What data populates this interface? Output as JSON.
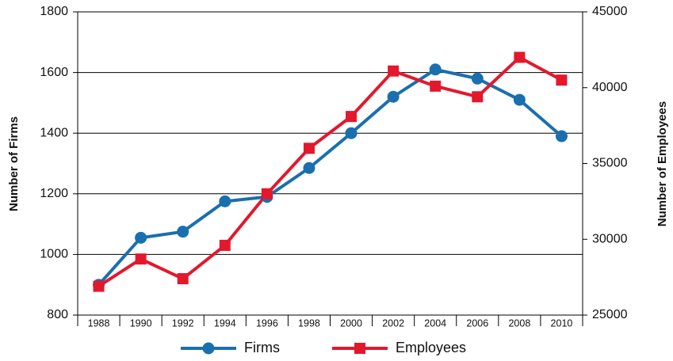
{
  "chart_data": {
    "type": "line",
    "categories": [
      "1988",
      "1990",
      "1992",
      "1994",
      "1996",
      "1998",
      "2000",
      "2002",
      "2004",
      "2006",
      "2008",
      "2010"
    ],
    "series": [
      {
        "name": "Firms",
        "color": "#1a6faf",
        "marker": "circle",
        "axis": "y",
        "values": [
          900,
          1055,
          1075,
          1175,
          1190,
          1285,
          1400,
          1520,
          1610,
          1580,
          1510,
          1390
        ]
      },
      {
        "name": "Employees",
        "color": "#e3182d",
        "marker": "square",
        "axis": "y2",
        "values": [
          26900,
          28700,
          27400,
          29600,
          33000,
          36000,
          38100,
          41100,
          40100,
          39400,
          42000,
          40500
        ]
      }
    ],
    "ylabel": "Number of Firms",
    "y2label": "Number of Employees",
    "ylim": [
      800,
      1800
    ],
    "yticks": [
      800,
      1000,
      1200,
      1400,
      1600,
      1800
    ],
    "y2lim": [
      25000,
      45000
    ],
    "y2ticks": [
      25000,
      30000,
      35000,
      40000,
      45000
    ],
    "grid": true,
    "legend": "bottom"
  }
}
